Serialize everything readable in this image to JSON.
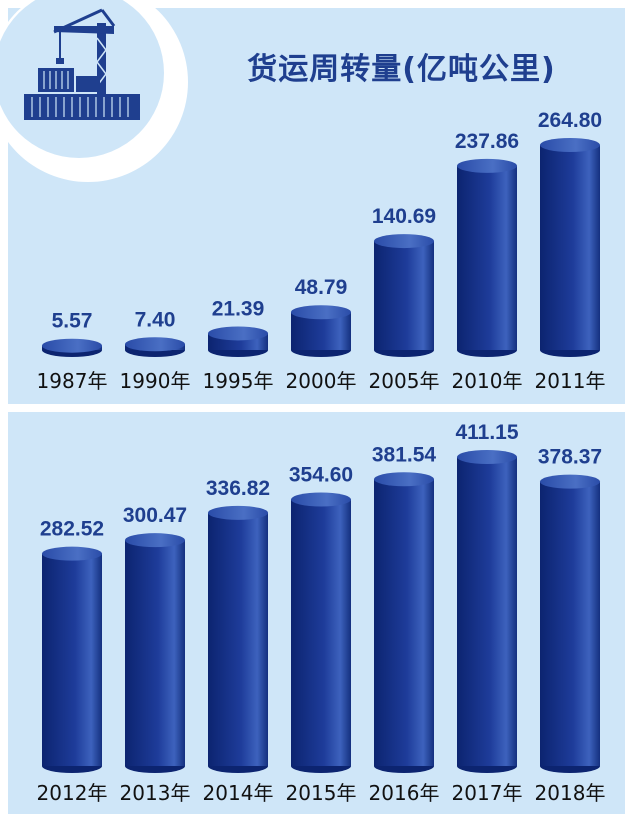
{
  "title": "货运周转量(亿吨公里)",
  "colors": {
    "background": "#cfe6f8",
    "bar_dark": "#0c2470",
    "bar_mid": "#1e3c9a",
    "bar_light": "#4a6fc4",
    "bar_top": "#2f55b8",
    "text_dark": "#1f3f8f",
    "axis_text": "#111111"
  },
  "logo": {
    "icon": "port-crane-container-icon"
  },
  "chart_data": [
    {
      "type": "bar",
      "title": "货运周转量(亿吨公里)",
      "categories": [
        "1987年",
        "1990年",
        "1995年",
        "2000年",
        "2005年",
        "2010年",
        "2011年"
      ],
      "values": [
        5.57,
        7.4,
        21.39,
        48.79,
        140.69,
        237.86,
        264.8
      ],
      "value_labels": [
        "5.57",
        "7.40",
        "21.39",
        "48.79",
        "140.69",
        "237.86",
        "264.80"
      ],
      "xlabel": "",
      "ylabel": "",
      "ylim": [
        0,
        264.8
      ],
      "grid": false,
      "legend": "none"
    },
    {
      "type": "bar",
      "categories": [
        "2012年",
        "2013年",
        "2014年",
        "2015年",
        "2016年",
        "2017年",
        "2018年"
      ],
      "values": [
        282.52,
        300.47,
        336.82,
        354.6,
        381.54,
        411.15,
        378.37
      ],
      "value_labels": [
        "282.52",
        "300.47",
        "336.82",
        "354.60",
        "381.54",
        "411.15",
        "378.37"
      ],
      "xlabel": "",
      "ylabel": "",
      "ylim": [
        0,
        411.15
      ],
      "grid": false,
      "legend": "none"
    }
  ]
}
